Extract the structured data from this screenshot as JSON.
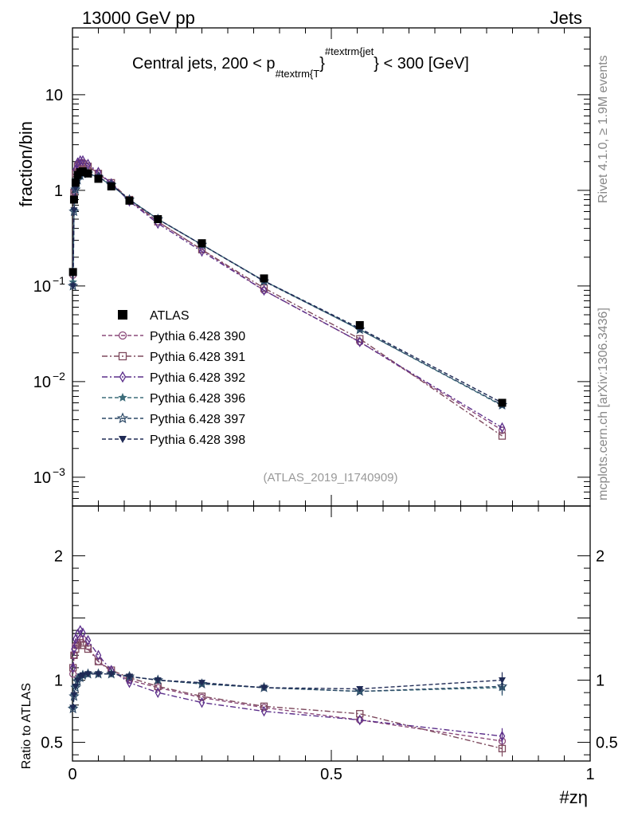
{
  "header": {
    "left": "13000 GeV pp",
    "right": "Jets"
  },
  "side_labels": {
    "rivet": "Rivet 4.1.0, ≥ 1.9M events",
    "mcplots": "mcplots.cern.ch [arXiv:1306.3436]"
  },
  "chart_data": [
    {
      "type": "line",
      "panel": "main",
      "title_parts": {
        "prefix": "Central jets, 200 < p",
        "sub": "#textrm{T",
        "close": "}",
        "sup": "#textrm{jet",
        "suffix": "} < 300 [GeV]"
      },
      "ylabel": "fraction/bin",
      "yscale": "log",
      "ylim": [
        0.0005,
        50
      ],
      "xlim": [
        0,
        1
      ],
      "analysis_tag": "(ATLAS_2019_I1740909)",
      "y_tick_labels": [
        {
          "value": 10,
          "base": "10",
          "exp": ""
        },
        {
          "value": 1,
          "base": "1",
          "exp": ""
        },
        {
          "value": 0.1,
          "base": "10",
          "exp": "−1"
        },
        {
          "value": 0.01,
          "base": "10",
          "exp": "−2"
        },
        {
          "value": 0.001,
          "base": "10",
          "exp": "−3"
        }
      ],
      "x": [
        0.001,
        0.003,
        0.006,
        0.01,
        0.015,
        0.02,
        0.03,
        0.05,
        0.075,
        0.11,
        0.165,
        0.25,
        0.37,
        0.555,
        0.83
      ],
      "series": [
        {
          "name": "ATLAS",
          "color": "#000000",
          "marker": "square-filled",
          "dash": "none",
          "values": [
            0.14,
            0.8,
            1.2,
            1.45,
            1.55,
            1.58,
            1.5,
            1.32,
            1.1,
            0.78,
            0.5,
            0.28,
            0.12,
            0.039,
            0.006
          ]
        },
        {
          "name": "Pythia 6.428 390",
          "color": "#8b4a7a",
          "marker": "circle-open",
          "dash": "5,3",
          "values": [
            0.13,
            0.98,
            1.55,
            1.85,
            1.95,
            1.95,
            1.8,
            1.5,
            1.17,
            0.78,
            0.47,
            0.24,
            0.09,
            0.026,
            0.0031
          ]
        },
        {
          "name": "Pythia 6.428 391",
          "color": "#7e4a5e",
          "marker": "square-open",
          "dash": "7,3,2,3",
          "values": [
            0.14,
            0.95,
            1.5,
            1.8,
            1.9,
            1.9,
            1.78,
            1.5,
            1.2,
            0.8,
            0.47,
            0.24,
            0.095,
            0.028,
            0.0027
          ]
        },
        {
          "name": "Pythia 6.428 392",
          "color": "#5b2e8a",
          "marker": "diamond-open",
          "dash": "7,3,2,3",
          "values": [
            0.14,
            1.05,
            1.65,
            1.95,
            2.05,
            2.05,
            1.88,
            1.55,
            1.18,
            0.77,
            0.45,
            0.23,
            0.09,
            0.026,
            0.0033
          ]
        },
        {
          "name": "Pythia 6.428 396",
          "color": "#3d6d7a",
          "marker": "star-filled",
          "dash": "5,3",
          "values": [
            0.11,
            0.62,
            1.05,
            1.3,
            1.45,
            1.5,
            1.5,
            1.37,
            1.13,
            0.8,
            0.5,
            0.27,
            0.113,
            0.035,
            0.0056
          ]
        },
        {
          "name": "Pythia 6.428 397",
          "color": "#2c4866",
          "marker": "star-open",
          "dash": "5,3",
          "values": [
            0.1,
            0.6,
            1.02,
            1.28,
            1.43,
            1.5,
            1.5,
            1.38,
            1.14,
            0.8,
            0.5,
            0.27,
            0.112,
            0.035,
            0.0057
          ]
        },
        {
          "name": "Pythia 6.428 398",
          "color": "#1f2a55",
          "marker": "triangle-down-filled",
          "dash": "5,3",
          "values": [
            0.1,
            0.62,
            1.05,
            1.3,
            1.45,
            1.5,
            1.5,
            1.38,
            1.15,
            0.8,
            0.5,
            0.27,
            0.113,
            0.036,
            0.006
          ]
        }
      ]
    },
    {
      "type": "line",
      "panel": "ratio",
      "ylabel": "Ratio to ATLAS",
      "xlabel": "#zη",
      "ylim": [
        0.35,
        2.4
      ],
      "xlim": [
        0,
        1
      ],
      "y_tick_labels": [
        "2",
        "1",
        "0.5"
      ],
      "x_tick_labels": [
        "0",
        "0.5",
        "1"
      ],
      "x": [
        0.001,
        0.003,
        0.006,
        0.01,
        0.015,
        0.02,
        0.03,
        0.05,
        0.075,
        0.11,
        0.165,
        0.25,
        0.37,
        0.555,
        0.83
      ],
      "series": [
        {
          "name": "Pythia 6.428 390",
          "values": [
            1.05,
            1.2,
            1.28,
            1.3,
            1.33,
            1.33,
            1.27,
            1.15,
            1.07,
            1.0,
            0.94,
            0.86,
            0.78,
            0.68,
            0.51
          ]
        },
        {
          "name": "Pythia 6.428 391",
          "values": [
            1.1,
            1.2,
            1.25,
            1.28,
            1.3,
            1.28,
            1.25,
            1.15,
            1.08,
            1.02,
            0.95,
            0.87,
            0.79,
            0.73,
            0.45
          ]
        },
        {
          "name": "Pythia 6.428 392",
          "values": [
            1.1,
            1.25,
            1.33,
            1.37,
            1.4,
            1.38,
            1.32,
            1.2,
            1.08,
            0.98,
            0.9,
            0.82,
            0.75,
            0.68,
            0.55
          ]
        },
        {
          "name": "Pythia 6.428 396",
          "values": [
            0.78,
            0.88,
            0.95,
            1.0,
            1.03,
            1.04,
            1.05,
            1.05,
            1.05,
            1.03,
            1.0,
            0.97,
            0.94,
            0.91,
            0.94
          ]
        },
        {
          "name": "Pythia 6.428 397",
          "values": [
            0.77,
            0.87,
            0.94,
            0.99,
            1.02,
            1.04,
            1.05,
            1.05,
            1.05,
            1.03,
            1.0,
            0.97,
            0.94,
            0.91,
            0.95
          ]
        },
        {
          "name": "Pythia 6.428 398",
          "values": [
            0.78,
            0.88,
            0.95,
            1.0,
            1.03,
            1.04,
            1.05,
            1.05,
            1.05,
            1.03,
            1.0,
            0.98,
            0.94,
            0.93,
            1.0
          ]
        }
      ]
    }
  ]
}
